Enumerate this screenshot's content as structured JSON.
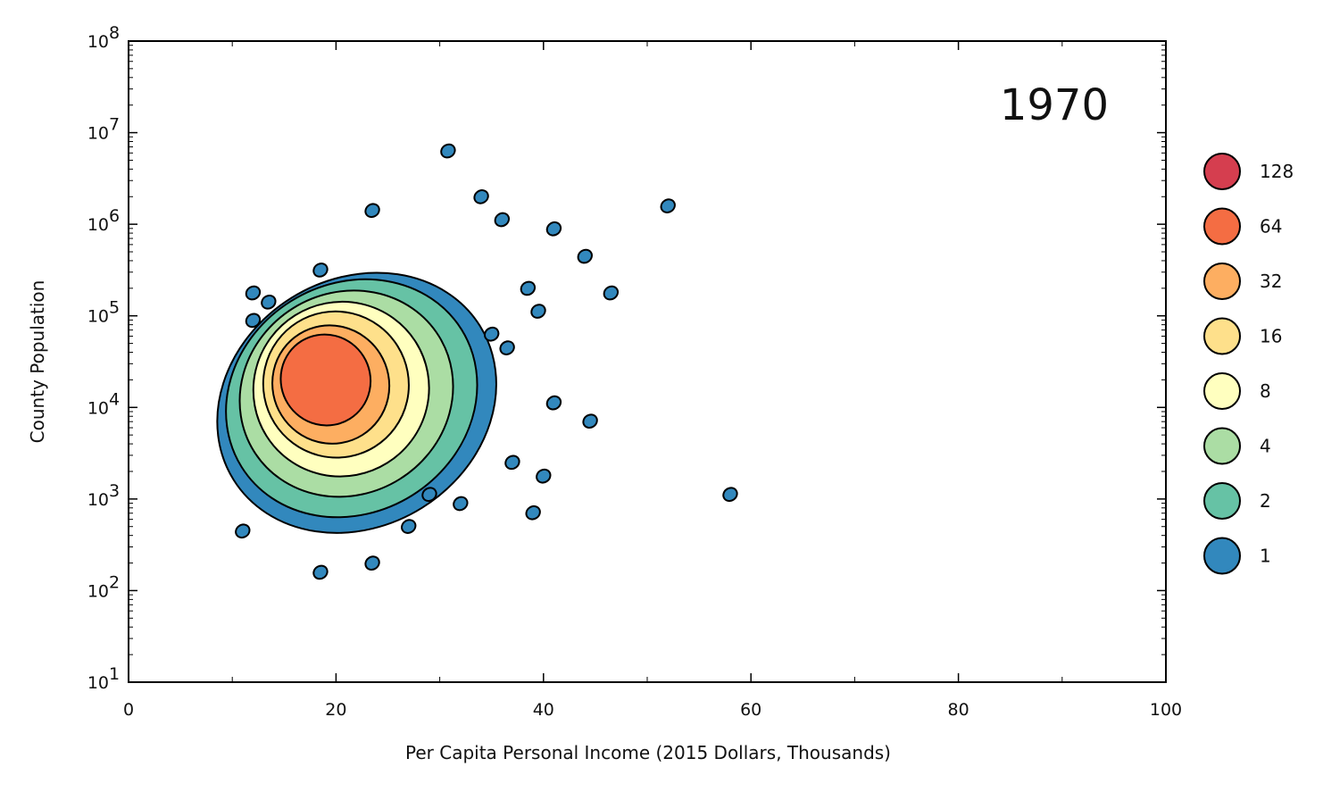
{
  "chart_data": {
    "type": "contour",
    "title": "1970",
    "xlabel": "Per Capita Personal Income (2015 Dollars, Thousands)",
    "ylabel": "County Population",
    "xlim": [
      0,
      100
    ],
    "ylim_log10": [
      1,
      8
    ],
    "y_scale": "log",
    "x_ticks": [
      "0",
      "20",
      "40",
      "60",
      "80",
      "100"
    ],
    "y_ticks": [
      {
        "base": "10",
        "exp": "1"
      },
      {
        "base": "10",
        "exp": "2"
      },
      {
        "base": "10",
        "exp": "3"
      },
      {
        "base": "10",
        "exp": "4"
      },
      {
        "base": "10",
        "exp": "5"
      },
      {
        "base": "10",
        "exp": "6"
      },
      {
        "base": "10",
        "exp": "7"
      },
      {
        "base": "10",
        "exp": "8"
      }
    ],
    "legend": [
      {
        "label": "128",
        "color": "#d53e4f"
      },
      {
        "label": "64",
        "color": "#f46d43"
      },
      {
        "label": "32",
        "color": "#fdae61"
      },
      {
        "label": "16",
        "color": "#fee08b"
      },
      {
        "label": "8",
        "color": "#ffffbf"
      },
      {
        "label": "4",
        "color": "#abdda4"
      },
      {
        "label": "2",
        "color": "#66c2a5"
      },
      {
        "label": "1",
        "color": "#3288bd"
      }
    ],
    "legend_position": "right",
    "contour_levels": [
      {
        "level": "1",
        "color": "#3288bd",
        "cx": 22,
        "cy": 4.05,
        "rx": 14,
        "ry": 1.35
      },
      {
        "level": "2",
        "color": "#66c2a5",
        "cx": 21.5,
        "cy": 4.1,
        "rx": 12.5,
        "ry": 1.25
      },
      {
        "level": "4",
        "color": "#abdda4",
        "cx": 21,
        "cy": 4.15,
        "rx": 10.5,
        "ry": 1.1
      },
      {
        "level": "8",
        "color": "#ffffbf",
        "cx": 20.5,
        "cy": 4.2,
        "rx": 8.5,
        "ry": 0.95
      },
      {
        "level": "16",
        "color": "#fee08b",
        "cx": 20,
        "cy": 4.25,
        "rx": 7,
        "ry": 0.8
      },
      {
        "level": "32",
        "color": "#fdae61",
        "cx": 19.5,
        "cy": 4.25,
        "rx": 5.6,
        "ry": 0.65
      },
      {
        "level": "64",
        "color": "#f46d43",
        "cx": 19,
        "cy": 4.3,
        "rx": 4.3,
        "ry": 0.5
      }
    ],
    "isolated_counties": [
      {
        "x": 11,
        "y": 2.65
      },
      {
        "x": 18.5,
        "y": 2.2
      },
      {
        "x": 23.5,
        "y": 2.3
      },
      {
        "x": 27,
        "y": 2.7
      },
      {
        "x": 30.8,
        "y": 6.8
      },
      {
        "x": 34,
        "y": 6.3
      },
      {
        "x": 23.5,
        "y": 6.15
      },
      {
        "x": 36,
        "y": 6.05
      },
      {
        "x": 41,
        "y": 5.95
      },
      {
        "x": 44,
        "y": 5.65
      },
      {
        "x": 52,
        "y": 6.2
      },
      {
        "x": 46.5,
        "y": 5.25
      },
      {
        "x": 38.5,
        "y": 5.3
      },
      {
        "x": 39.5,
        "y": 5.05
      },
      {
        "x": 35,
        "y": 4.8
      },
      {
        "x": 36.5,
        "y": 4.65
      },
      {
        "x": 41,
        "y": 4.05
      },
      {
        "x": 44.5,
        "y": 3.85
      },
      {
        "x": 40,
        "y": 3.25
      },
      {
        "x": 39,
        "y": 2.85
      },
      {
        "x": 58,
        "y": 3.05
      },
      {
        "x": 12,
        "y": 5.25
      },
      {
        "x": 13.5,
        "y": 5.15
      },
      {
        "x": 18.5,
        "y": 5.5
      },
      {
        "x": 12,
        "y": 4.95
      },
      {
        "x": 37,
        "y": 3.4
      },
      {
        "x": 32,
        "y": 2.95
      },
      {
        "x": 29,
        "y": 3.05
      }
    ]
  }
}
